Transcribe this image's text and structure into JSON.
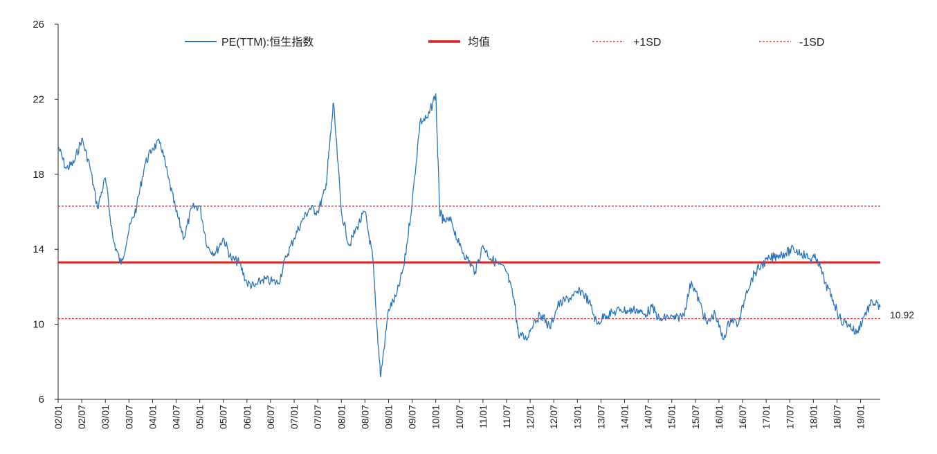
{
  "chart_data": {
    "type": "line",
    "title": "",
    "xlabel": "",
    "ylabel": "",
    "ylim": [
      6,
      26
    ],
    "yticks": [
      6,
      10,
      14,
      18,
      22,
      26
    ],
    "xlim": [
      "2002-01",
      "2019-06"
    ],
    "xticks": [
      "02/01",
      "02/07",
      "03/01",
      "03/07",
      "04/01",
      "04/07",
      "05/01",
      "05/07",
      "06/01",
      "06/07",
      "07/01",
      "07/07",
      "08/01",
      "08/07",
      "09/01",
      "09/07",
      "10/01",
      "10/07",
      "11/01",
      "11/07",
      "12/01",
      "12/07",
      "13/01",
      "13/07",
      "14/01",
      "14/07",
      "15/01",
      "15/07",
      "16/01",
      "16/07",
      "17/01",
      "17/07",
      "18/01",
      "18/07",
      "19/01"
    ],
    "grid": false,
    "legend_position": "top",
    "end_label": "10.92",
    "colors": {
      "pe": "#2a73b8",
      "mean": "#e02020",
      "sd": "#e02020"
    },
    "series": [
      {
        "name": "PE(TTM):恒生指数",
        "style": "solid-thin",
        "x": [
          "2002-01",
          "2002-03",
          "2002-05",
          "2002-07",
          "2002-09",
          "2002-11",
          "2003-01",
          "2003-03",
          "2003-05",
          "2003-07",
          "2003-09",
          "2003-11",
          "2004-01",
          "2004-03",
          "2004-05",
          "2004-07",
          "2004-09",
          "2004-11",
          "2005-01",
          "2005-03",
          "2005-05",
          "2005-07",
          "2005-09",
          "2005-11",
          "2006-01",
          "2006-03",
          "2006-05",
          "2006-07",
          "2006-09",
          "2006-11",
          "2007-01",
          "2007-03",
          "2007-05",
          "2007-07",
          "2007-09",
          "2007-10",
          "2007-11",
          "2008-01",
          "2008-03",
          "2008-05",
          "2008-07",
          "2008-09",
          "2008-10",
          "2008-11",
          "2009-01",
          "2009-03",
          "2009-05",
          "2009-07",
          "2009-09",
          "2009-11",
          "2010-01",
          "2010-02",
          "2010-03",
          "2010-05",
          "2010-07",
          "2010-09",
          "2010-11",
          "2011-01",
          "2011-03",
          "2011-05",
          "2011-07",
          "2011-09",
          "2011-10",
          "2011-12",
          "2012-02",
          "2012-04",
          "2012-06",
          "2012-08",
          "2012-10",
          "2012-12",
          "2013-02",
          "2013-04",
          "2013-06",
          "2013-08",
          "2013-10",
          "2013-12",
          "2014-02",
          "2014-04",
          "2014-06",
          "2014-08",
          "2014-10",
          "2014-12",
          "2015-02",
          "2015-04",
          "2015-06",
          "2015-08",
          "2015-10",
          "2015-12",
          "2016-02",
          "2016-04",
          "2016-06",
          "2016-08",
          "2016-10",
          "2016-12",
          "2017-02",
          "2017-04",
          "2017-06",
          "2017-08",
          "2017-10",
          "2017-12",
          "2018-02",
          "2018-04",
          "2018-06",
          "2018-08",
          "2018-10",
          "2018-12",
          "2019-02",
          "2019-04",
          "2019-06"
        ],
        "values": [
          19.5,
          18.3,
          18.6,
          19.9,
          18.5,
          16.2,
          17.8,
          14.5,
          13.2,
          15.0,
          16.3,
          18.5,
          19.4,
          19.7,
          17.8,
          16.0,
          14.6,
          16.2,
          16.3,
          14.1,
          13.8,
          14.6,
          13.5,
          13.3,
          12.2,
          12.0,
          12.4,
          12.3,
          12.2,
          13.6,
          14.6,
          15.5,
          16.2,
          16.0,
          17.2,
          19.5,
          21.8,
          16.0,
          14.2,
          15.2,
          16.0,
          13.5,
          10.0,
          7.2,
          10.8,
          11.5,
          13.2,
          16.5,
          20.8,
          21.0,
          22.3,
          16.0,
          15.5,
          15.5,
          14.2,
          13.5,
          12.8,
          14.2,
          13.5,
          13.2,
          12.8,
          11.2,
          9.5,
          9.2,
          10.2,
          10.5,
          9.8,
          11.0,
          11.3,
          11.5,
          11.8,
          11.2,
          10.0,
          10.5,
          10.6,
          10.8,
          10.7,
          10.8,
          10.5,
          10.9,
          10.2,
          10.4,
          10.3,
          10.5,
          12.3,
          11.2,
          10.0,
          10.6,
          9.2,
          10.3,
          10.0,
          11.8,
          12.7,
          13.2,
          13.5,
          13.7,
          13.8,
          14.0,
          13.8,
          13.5,
          13.5,
          12.2,
          11.3,
          10.2,
          10.0,
          9.5,
          10.5,
          11.2,
          10.92
        ]
      },
      {
        "name": "均值",
        "style": "solid-thick",
        "value": 13.3
      },
      {
        "name": "+1SD",
        "style": "dashed",
        "value": 16.3
      },
      {
        "name": "-1SD",
        "style": "dashed",
        "value": 10.3
      }
    ]
  }
}
